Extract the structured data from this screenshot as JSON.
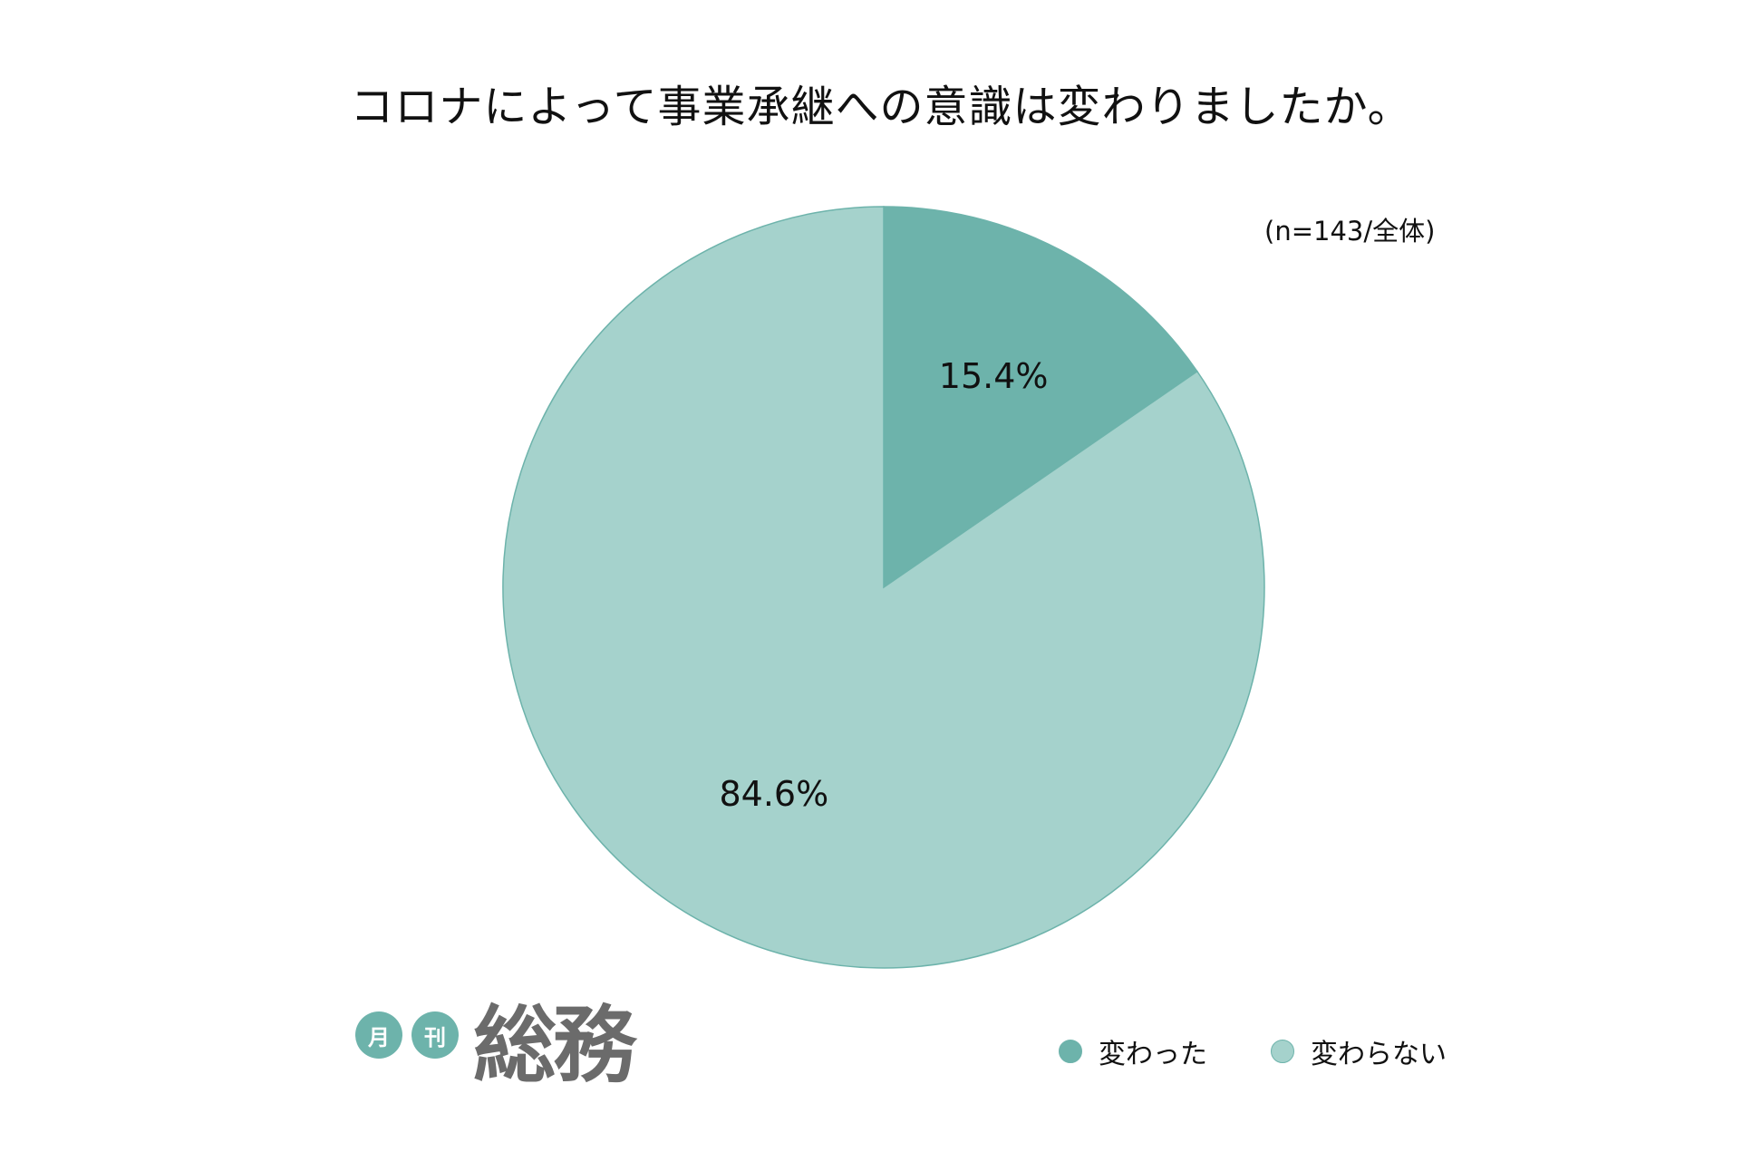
{
  "chart_data": {
    "type": "pie",
    "title": "コロナによって事業承継への意識は変わりましたか。",
    "subtitle": "(n=143/全体)",
    "slices": [
      {
        "name": "変わった",
        "value": 15.4,
        "label": "15.4%",
        "color": "#6db3ab"
      },
      {
        "name": "変わらない",
        "value": 84.6,
        "label": "84.6%",
        "color": "#a5d2cc"
      }
    ],
    "legend_position": "bottom-right",
    "stroke_color": "#6db3ab"
  },
  "logo": {
    "badge_1": "月",
    "badge_2": "刊",
    "name": "総務"
  }
}
